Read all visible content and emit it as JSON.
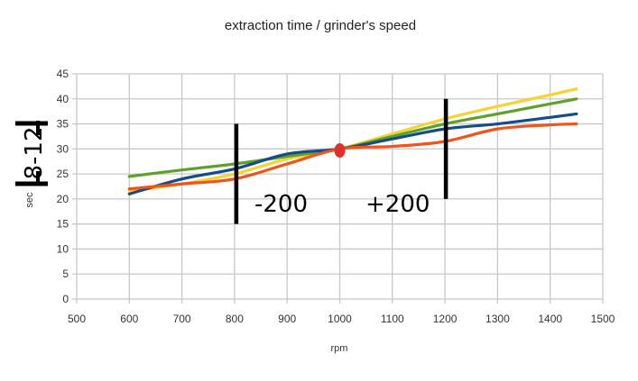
{
  "chart_data": {
    "type": "line",
    "title": "extraction time /   grinder's speed",
    "xlabel": "rpm",
    "ylabel": "sec",
    "xlim": [
      500,
      1500
    ],
    "ylim": [
      0,
      45
    ],
    "xticks": [
      500,
      600,
      700,
      800,
      900,
      1000,
      1100,
      1200,
      1300,
      1400,
      1500
    ],
    "yticks": [
      0,
      5,
      10,
      15,
      20,
      25,
      30,
      35,
      40,
      45
    ],
    "grid": true,
    "x": [
      600,
      700,
      800,
      900,
      1000,
      1100,
      1200,
      1300,
      1400,
      1450
    ],
    "series": [
      {
        "name": "yellow",
        "color": "#f7d330",
        "values": [
          21.5,
          23,
          25,
          28,
          30,
          33,
          36,
          38.5,
          40.8,
          42
        ]
      },
      {
        "name": "green",
        "color": "#5fa02a",
        "values": [
          24.5,
          25.8,
          27,
          28.5,
          30,
          32.5,
          35,
          37,
          39,
          40
        ]
      },
      {
        "name": "blue",
        "color": "#134c8a",
        "values": [
          21,
          24,
          26,
          29,
          30,
          32,
          34,
          35,
          36.3,
          37
        ]
      },
      {
        "name": "red",
        "color": "#f2531b",
        "values": [
          22,
          23,
          24,
          27,
          30,
          30.5,
          31.5,
          34,
          34.8,
          35
        ]
      }
    ],
    "marker": {
      "x": 1000,
      "y": 29.7,
      "color": "#e0302a"
    },
    "annotations": [
      {
        "text": "-200",
        "bar_x": 800,
        "bar_y": [
          15,
          35
        ]
      },
      {
        "text": "+200",
        "bar_x": 1200,
        "bar_y": [
          20,
          40
        ]
      },
      {
        "text": "8-12",
        "bar_y": [
          25,
          35
        ]
      }
    ]
  }
}
